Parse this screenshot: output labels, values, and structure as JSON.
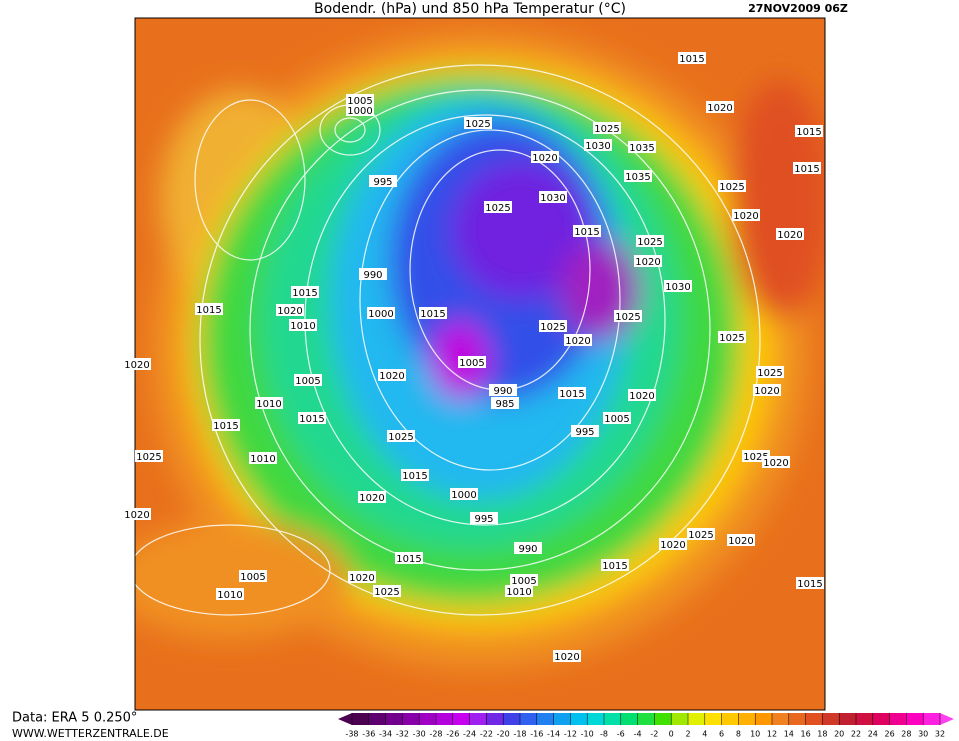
{
  "header": {
    "title": "Bodendr. (hPa) und 850 hPa Temperatur (°C)",
    "date": "27NOV2009 06Z"
  },
  "footer": {
    "source": "Data: ERA 5 0.250°",
    "site": "WWW.WETTERZENTRALE.DE"
  },
  "colorbar": {
    "ticks": [
      -38,
      -36,
      -34,
      -32,
      -30,
      -28,
      -26,
      -24,
      -22,
      -20,
      -18,
      -16,
      -14,
      -12,
      -10,
      -8,
      -6,
      -4,
      -2,
      0,
      2,
      4,
      6,
      8,
      10,
      12,
      14,
      16,
      18,
      20,
      22,
      24,
      26,
      28,
      30,
      32
    ],
    "colors": [
      "#4b0050",
      "#5e0070",
      "#72008c",
      "#8800a8",
      "#a000c4",
      "#b400dc",
      "#c800f0",
      "#a020f0",
      "#7028e6",
      "#4040e8",
      "#3060f0",
      "#2080f0",
      "#10a0f0",
      "#00c0f0",
      "#00d8d8",
      "#00e0a8",
      "#00e070",
      "#20e040",
      "#40e000",
      "#a0e800",
      "#e0f000",
      "#ffe000",
      "#ffc800",
      "#ffb000",
      "#ff9800",
      "#f08020",
      "#e86820",
      "#e05020",
      "#d03828",
      "#c02030",
      "#d01040",
      "#e00060",
      "#f00090",
      "#ff00c0",
      "#ff20e0",
      "#ff40f0"
    ]
  },
  "isobar_labels": [
    "1005",
    "1000",
    "1025",
    "1020",
    "1025",
    "1030",
    "1035",
    "1035",
    "995",
    "1030",
    "1025",
    "1015",
    "1025",
    "1020",
    "990",
    "1030",
    "1015",
    "1020",
    "1010",
    "1000",
    "1015",
    "1025",
    "1025",
    "1020",
    "1005",
    "1020",
    "1005",
    "990",
    "985",
    "1015",
    "1020",
    "1005",
    "1010",
    "1015",
    "995",
    "1025",
    "1015",
    "1010",
    "1025",
    "1015",
    "1000",
    "1020",
    "995",
    "1020",
    "990",
    "1015",
    "1005",
    "1020",
    "1025",
    "1005",
    "1010",
    "1010",
    "1015",
    "1020",
    "1025",
    "1020",
    "1020",
    "1015",
    "1025",
    "1020",
    "1025",
    "1025",
    "1020",
    "1020",
    "1015",
    "1015",
    "1020",
    "1025",
    "1020",
    "1015",
    "1020",
    "1015"
  ]
}
